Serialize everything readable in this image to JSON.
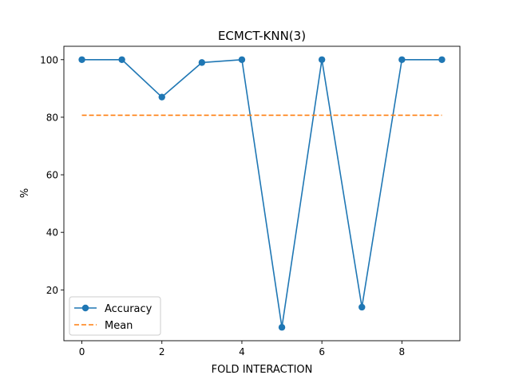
{
  "chart_data": {
    "type": "line",
    "title": "ECMCT-KNN(3)",
    "xlabel": "FOLD INTERACTION",
    "ylabel": "%",
    "xlim": [
      -0.45,
      9.45
    ],
    "ylim": [
      2.35,
      104.65
    ],
    "x_ticks": [
      0,
      2,
      4,
      6,
      8
    ],
    "y_ticks": [
      20,
      40,
      60,
      80,
      100
    ],
    "x": [
      0,
      1,
      2,
      3,
      4,
      5,
      6,
      7,
      8,
      9
    ],
    "series": [
      {
        "name": "Accuracy",
        "values": [
          100,
          100,
          87,
          99,
          100,
          7,
          100,
          14,
          100,
          100
        ],
        "color": "#1f77b4",
        "style": "solid",
        "marker": "circle"
      },
      {
        "name": "Mean",
        "values": [
          80.7,
          80.7,
          80.7,
          80.7,
          80.7,
          80.7,
          80.7,
          80.7,
          80.7,
          80.7
        ],
        "color": "#ff7f0e",
        "style": "dashed",
        "marker": "none"
      }
    ],
    "grid": false,
    "legend_position": "lower-left"
  }
}
